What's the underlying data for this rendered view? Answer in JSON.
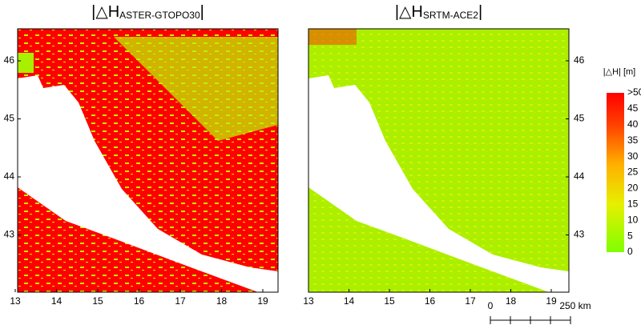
{
  "panels": [
    {
      "title": {
        "prefix": "|△H",
        "subscript": "ASTER-GTOPO30",
        "suffix": "|"
      },
      "xticks": [
        13,
        14,
        15,
        16,
        17,
        18,
        19
      ],
      "yticks": [
        43,
        44,
        45,
        46
      ],
      "ytick_side": "left"
    },
    {
      "title": {
        "prefix": "|△H",
        "subscript": "SRTM-ACE2",
        "suffix": "|"
      },
      "xticks": [
        13,
        14,
        15,
        16,
        17,
        18,
        19
      ],
      "yticks": [
        43,
        44,
        45,
        46
      ],
      "ytick_side": "right"
    }
  ],
  "colorbar": {
    "title": "|△H| [m]",
    "labels": [
      ">50",
      "45",
      "40",
      "35",
      "30",
      "25",
      "20",
      "15",
      "10",
      "5",
      "0"
    ]
  },
  "scalebar": {
    "start": "0",
    "end": "250 km"
  }
}
